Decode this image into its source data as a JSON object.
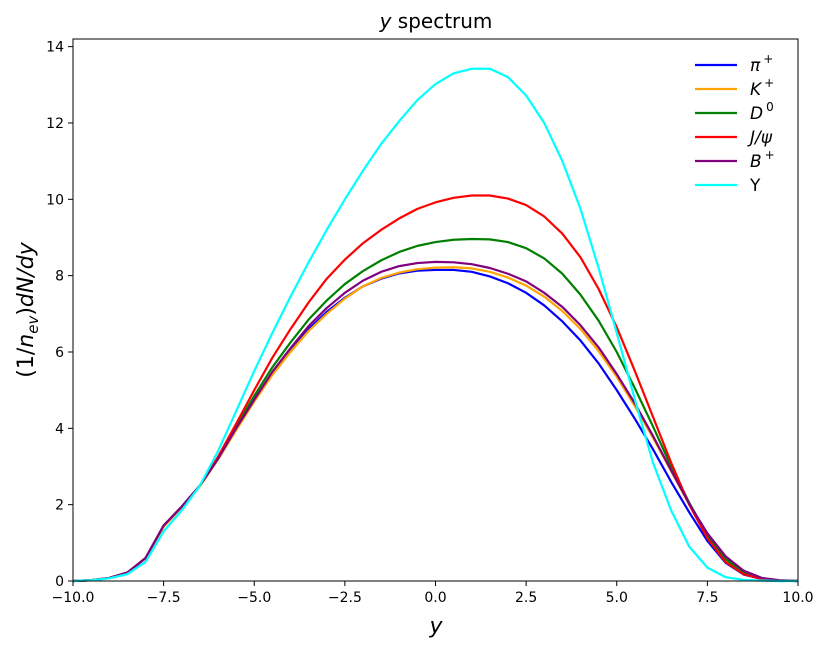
{
  "chart_data": {
    "type": "line",
    "title": {
      "italic": "y",
      "rest": " spectrum"
    },
    "xlabel": "y",
    "ylabel": {
      "pre": "(1/",
      "n": "n",
      "sub": "ev",
      "post": ")",
      "rest": "dN/dy"
    },
    "xlim": [
      -10,
      10
    ],
    "ylim": [
      0,
      14.2
    ],
    "x_ticks": [
      -10,
      -7.5,
      -5,
      -2.5,
      0,
      2.5,
      5,
      7.5,
      10
    ],
    "x_tick_labels": [
      "−10.0",
      "−7.5",
      "−5.0",
      "−2.5",
      "0.0",
      "2.5",
      "5.0",
      "7.5",
      "10.0"
    ],
    "y_ticks": [
      0,
      2,
      4,
      6,
      8,
      10,
      12,
      14
    ],
    "y_tick_labels": [
      "0",
      "2",
      "4",
      "6",
      "8",
      "10",
      "12",
      "14"
    ],
    "grid": false,
    "legend_position": "top-right",
    "x": [
      -10,
      -9.5,
      -9,
      -8.5,
      -8,
      -7.5,
      -7,
      -6.5,
      -6,
      -5.5,
      -5,
      -4.5,
      -4,
      -3.5,
      -3,
      -2.5,
      -2,
      -1.5,
      -1,
      -0.5,
      0,
      0.5,
      1,
      1.5,
      2,
      2.5,
      3,
      3.5,
      4,
      4.5,
      5,
      5.5,
      6,
      6.5,
      7,
      7.5,
      8,
      8.5,
      9,
      9.5,
      10
    ],
    "series": [
      {
        "name": "π",
        "sup": "+",
        "color": "#0000ff",
        "values": [
          0,
          0.02,
          0.08,
          0.22,
          0.6,
          1.45,
          1.95,
          2.5,
          3.2,
          4.0,
          4.75,
          5.45,
          6.05,
          6.6,
          7.05,
          7.42,
          7.72,
          7.92,
          8.06,
          8.13,
          8.15,
          8.15,
          8.1,
          7.98,
          7.8,
          7.55,
          7.22,
          6.8,
          6.3,
          5.7,
          5.0,
          4.25,
          3.45,
          2.6,
          1.8,
          1.05,
          0.48,
          0.17,
          0.05,
          0.01,
          0
        ]
      },
      {
        "name": "K",
        "sup": "+",
        "color": "#ffa500",
        "values": [
          0,
          0.02,
          0.08,
          0.22,
          0.6,
          1.42,
          1.93,
          2.48,
          3.18,
          3.95,
          4.7,
          5.4,
          6.0,
          6.55,
          7.0,
          7.4,
          7.72,
          7.94,
          8.08,
          8.17,
          8.21,
          8.22,
          8.19,
          8.1,
          7.95,
          7.74,
          7.45,
          7.07,
          6.6,
          6.02,
          5.35,
          4.58,
          3.75,
          2.88,
          2.0,
          1.2,
          0.58,
          0.22,
          0.06,
          0.01,
          0
        ]
      },
      {
        "name": "D",
        "sup": "0",
        "color": "#008000",
        "values": [
          0,
          0.02,
          0.08,
          0.22,
          0.6,
          1.45,
          1.95,
          2.5,
          3.22,
          4.05,
          4.85,
          5.6,
          6.25,
          6.85,
          7.35,
          7.78,
          8.12,
          8.4,
          8.62,
          8.78,
          8.88,
          8.94,
          8.96,
          8.95,
          8.88,
          8.72,
          8.45,
          8.05,
          7.5,
          6.82,
          6.0,
          5.05,
          4.05,
          3.0,
          2.05,
          1.2,
          0.58,
          0.22,
          0.06,
          0.01,
          0
        ]
      },
      {
        "name": "J/ψ",
        "sup": "",
        "color": "#ff0000",
        "values": [
          0,
          0.02,
          0.08,
          0.22,
          0.6,
          1.45,
          1.95,
          2.5,
          3.25,
          4.12,
          5.0,
          5.85,
          6.6,
          7.3,
          7.92,
          8.42,
          8.85,
          9.2,
          9.5,
          9.75,
          9.92,
          10.04,
          10.1,
          10.1,
          10.02,
          9.85,
          9.55,
          9.1,
          8.48,
          7.65,
          6.65,
          5.5,
          4.3,
          3.1,
          2.0,
          1.12,
          0.5,
          0.18,
          0.05,
          0.01,
          0
        ]
      },
      {
        "name": "B",
        "sup": "+",
        "color": "#800080",
        "values": [
          0,
          0.02,
          0.08,
          0.22,
          0.6,
          1.45,
          1.95,
          2.5,
          3.2,
          4.0,
          4.75,
          5.48,
          6.1,
          6.68,
          7.15,
          7.55,
          7.87,
          8.1,
          8.25,
          8.33,
          8.36,
          8.35,
          8.3,
          8.2,
          8.05,
          7.85,
          7.55,
          7.18,
          6.7,
          6.12,
          5.42,
          4.65,
          3.8,
          2.9,
          2.02,
          1.25,
          0.65,
          0.27,
          0.08,
          0.02,
          0
        ]
      },
      {
        "name": "Υ",
        "sup": "",
        "color": "#00ffff",
        "values": [
          0,
          0.02,
          0.07,
          0.18,
          0.5,
          1.3,
          1.85,
          2.5,
          3.4,
          4.45,
          5.5,
          6.5,
          7.45,
          8.35,
          9.2,
          10.0,
          10.75,
          11.45,
          12.05,
          12.6,
          13.02,
          13.3,
          13.42,
          13.42,
          13.2,
          12.72,
          12.0,
          11.0,
          9.75,
          8.2,
          6.5,
          4.75,
          3.1,
          1.85,
          0.9,
          0.35,
          0.1,
          0.03,
          0.01,
          0,
          0
        ]
      }
    ]
  }
}
